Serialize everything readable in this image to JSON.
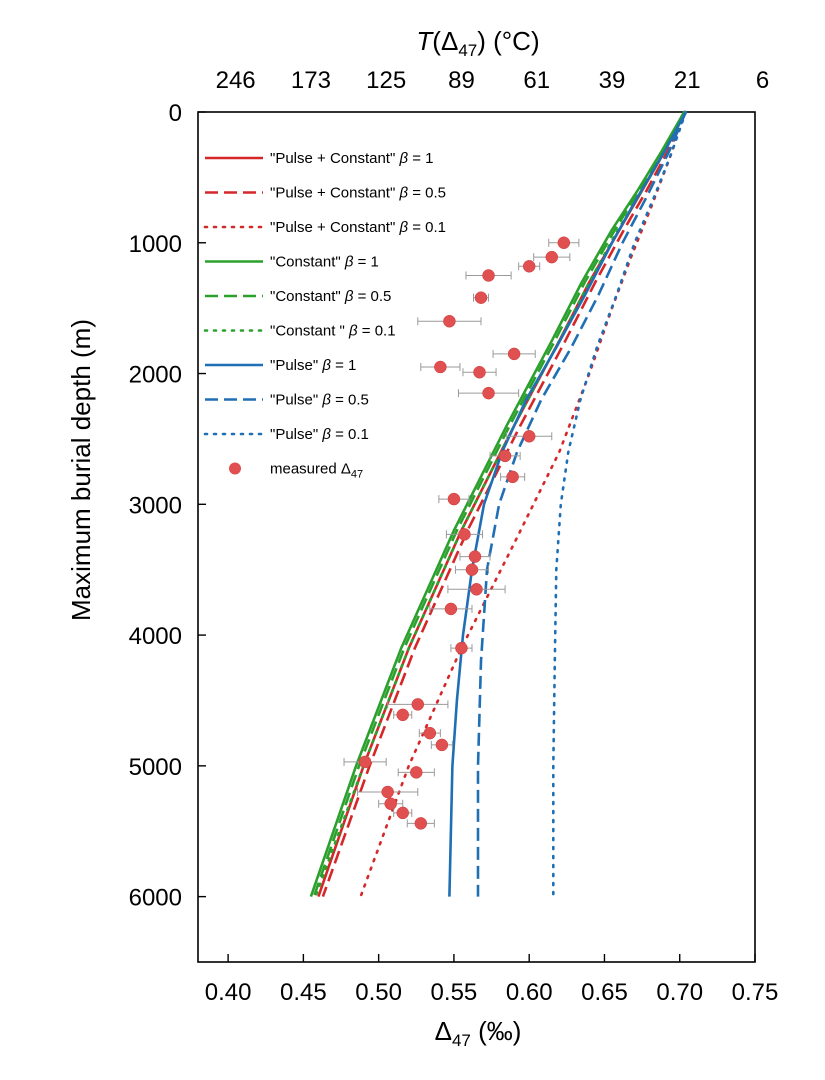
{
  "chart_data": {
    "type": "scatter",
    "title": "",
    "xlabel": "Δ47 (‰)",
    "ylabel": "Maximum burial depth (m)",
    "top_axis_label": "T(Δ47) (°C)",
    "xlim": [
      0.38,
      0.75
    ],
    "ylim": [
      0,
      6500
    ],
    "y_inverted": true,
    "x_ticks": [
      "0.40",
      "0.45",
      "0.50",
      "0.55",
      "0.60",
      "0.65",
      "0.70",
      "0.75"
    ],
    "x_tick_values": [
      0.4,
      0.45,
      0.5,
      0.55,
      0.6,
      0.65,
      0.7,
      0.75
    ],
    "y_ticks": [
      "0",
      "1000",
      "2000",
      "3000",
      "4000",
      "5000",
      "6000"
    ],
    "y_tick_values": [
      0,
      1000,
      2000,
      3000,
      4000,
      5000,
      6000
    ],
    "top_ticks": [
      "246",
      "173",
      "125",
      "89",
      "61",
      "39",
      "21",
      "6"
    ],
    "top_tick_values": [
      0.405,
      0.455,
      0.505,
      0.555,
      0.605,
      0.655,
      0.705,
      0.755
    ],
    "legend_position": "upper-left",
    "series": [
      {
        "name": "\"Pulse + Constant\" β = 1",
        "color": "#d62728",
        "dash": "solid",
        "x": [
          0.703,
          0.69,
          0.675,
          0.66,
          0.64,
          0.62,
          0.59,
          0.555,
          0.52,
          0.49,
          0.46
        ],
        "y": [
          0,
          300,
          600,
          900,
          1300,
          1750,
          2400,
          3200,
          4100,
          5000,
          6000
        ]
      },
      {
        "name": "\"Pulse + Constant\" β = 0.5",
        "color": "#d62728",
        "dash": "dashed",
        "x": [
          0.703,
          0.692,
          0.678,
          0.663,
          0.644,
          0.624,
          0.594,
          0.559,
          0.524,
          0.494,
          0.463
        ],
        "y": [
          0,
          300,
          600,
          900,
          1300,
          1750,
          2400,
          3200,
          4100,
          5000,
          6000
        ]
      },
      {
        "name": "\"Pulse + Constant\" β = 0.1",
        "color": "#d62728",
        "dash": "dotted",
        "x": [
          0.703,
          0.695,
          0.682,
          0.668,
          0.655,
          0.64,
          0.62,
          0.59,
          0.555,
          0.52,
          0.488
        ],
        "y": [
          0,
          300,
          700,
          1100,
          1500,
          2000,
          2600,
          3300,
          4100,
          5000,
          6000
        ]
      },
      {
        "name": "\"Constant\" β = 1",
        "color": "#2ca02c",
        "dash": "solid",
        "x": [
          0.703,
          0.688,
          0.672,
          0.655,
          0.635,
          0.615,
          0.585,
          0.55,
          0.515,
          0.485,
          0.455
        ],
        "y": [
          0,
          300,
          600,
          900,
          1300,
          1750,
          2400,
          3200,
          4100,
          5000,
          6000
        ]
      },
      {
        "name": "\"Constant\" β = 0.5",
        "color": "#2ca02c",
        "dash": "dashed",
        "x": [
          0.703,
          0.689,
          0.673,
          0.657,
          0.637,
          0.617,
          0.587,
          0.552,
          0.517,
          0.487,
          0.457
        ],
        "y": [
          0,
          300,
          600,
          900,
          1300,
          1750,
          2400,
          3200,
          4100,
          5000,
          6000
        ]
      },
      {
        "name": "\"Constant \" β = 0.1",
        "color": "#2ca02c",
        "dash": "dotted",
        "x": [
          0.703,
          0.69,
          0.675,
          0.659,
          0.64,
          0.62,
          0.59,
          0.555,
          0.52,
          0.49,
          0.458
        ],
        "y": [
          0,
          300,
          600,
          900,
          1300,
          1750,
          2400,
          3200,
          4100,
          5000,
          6000
        ]
      },
      {
        "name": "\"Pulse\" β = 1",
        "color": "#1f6fb5",
        "dash": "solid",
        "x": [
          0.704,
          0.69,
          0.672,
          0.655,
          0.637,
          0.618,
          0.598,
          0.582,
          0.57,
          0.562,
          0.556,
          0.552,
          0.549,
          0.548,
          0.547
        ],
        "y": [
          0,
          300,
          650,
          1000,
          1400,
          1800,
          2200,
          2600,
          3000,
          3500,
          4000,
          4500,
          5000,
          5500,
          6000
        ]
      },
      {
        "name": "\"Pulse\" β = 0.5",
        "color": "#1f6fb5",
        "dash": "dashed",
        "x": [
          0.704,
          0.693,
          0.678,
          0.662,
          0.646,
          0.628,
          0.608,
          0.592,
          0.58,
          0.572,
          0.568,
          0.566,
          0.566
        ],
        "y": [
          0,
          300,
          650,
          1000,
          1400,
          1800,
          2200,
          2600,
          3000,
          3500,
          4200,
          5000,
          6000
        ]
      },
      {
        "name": "\"Pulse\" β = 0.1",
        "color": "#1f6fb5",
        "dash": "dotted",
        "x": [
          0.704,
          0.695,
          0.683,
          0.67,
          0.658,
          0.645,
          0.634,
          0.626,
          0.621,
          0.618,
          0.617,
          0.616,
          0.616
        ],
        "y": [
          0,
          300,
          650,
          1000,
          1400,
          1800,
          2200,
          2600,
          3000,
          3500,
          4200,
          5000,
          6000
        ]
      }
    ],
    "measured": {
      "name": "measured Δ47",
      "color": "#e05050",
      "points": [
        {
          "x": 0.623,
          "y": 1000,
          "xerr": 0.01
        },
        {
          "x": 0.615,
          "y": 1110,
          "xerr": 0.012
        },
        {
          "x": 0.6,
          "y": 1180,
          "xerr": 0.007
        },
        {
          "x": 0.573,
          "y": 1250,
          "xerr": 0.015
        },
        {
          "x": 0.568,
          "y": 1420,
          "xerr": 0.005
        },
        {
          "x": 0.547,
          "y": 1600,
          "xerr": 0.021
        },
        {
          "x": 0.59,
          "y": 1850,
          "xerr": 0.014
        },
        {
          "x": 0.567,
          "y": 1990,
          "xerr": 0.011
        },
        {
          "x": 0.541,
          "y": 1950,
          "xerr": 0.013
        },
        {
          "x": 0.573,
          "y": 2150,
          "xerr": 0.02
        },
        {
          "x": 0.6,
          "y": 2480,
          "xerr": 0.015
        },
        {
          "x": 0.584,
          "y": 2630,
          "xerr": 0.01
        },
        {
          "x": 0.589,
          "y": 2790,
          "xerr": 0.008
        },
        {
          "x": 0.55,
          "y": 2960,
          "xerr": 0.01
        },
        {
          "x": 0.557,
          "y": 3230,
          "xerr": 0.012
        },
        {
          "x": 0.564,
          "y": 3400,
          "xerr": 0.01
        },
        {
          "x": 0.562,
          "y": 3500,
          "xerr": 0.011
        },
        {
          "x": 0.565,
          "y": 3650,
          "xerr": 0.019
        },
        {
          "x": 0.548,
          "y": 3800,
          "xerr": 0.014
        },
        {
          "x": 0.555,
          "y": 4100,
          "xerr": 0.007
        },
        {
          "x": 0.526,
          "y": 4530,
          "xerr": 0.02
        },
        {
          "x": 0.516,
          "y": 4610,
          "xerr": 0.006
        },
        {
          "x": 0.534,
          "y": 4750,
          "xerr": 0.007
        },
        {
          "x": 0.542,
          "y": 4840,
          "xerr": 0.007
        },
        {
          "x": 0.491,
          "y": 4970,
          "xerr": 0.014
        },
        {
          "x": 0.525,
          "y": 5050,
          "xerr": 0.012
        },
        {
          "x": 0.506,
          "y": 5200,
          "xerr": 0.02
        },
        {
          "x": 0.508,
          "y": 5290,
          "xerr": 0.008
        },
        {
          "x": 0.516,
          "y": 5360,
          "xerr": 0.006
        },
        {
          "x": 0.528,
          "y": 5440,
          "xerr": 0.009
        }
      ]
    }
  }
}
